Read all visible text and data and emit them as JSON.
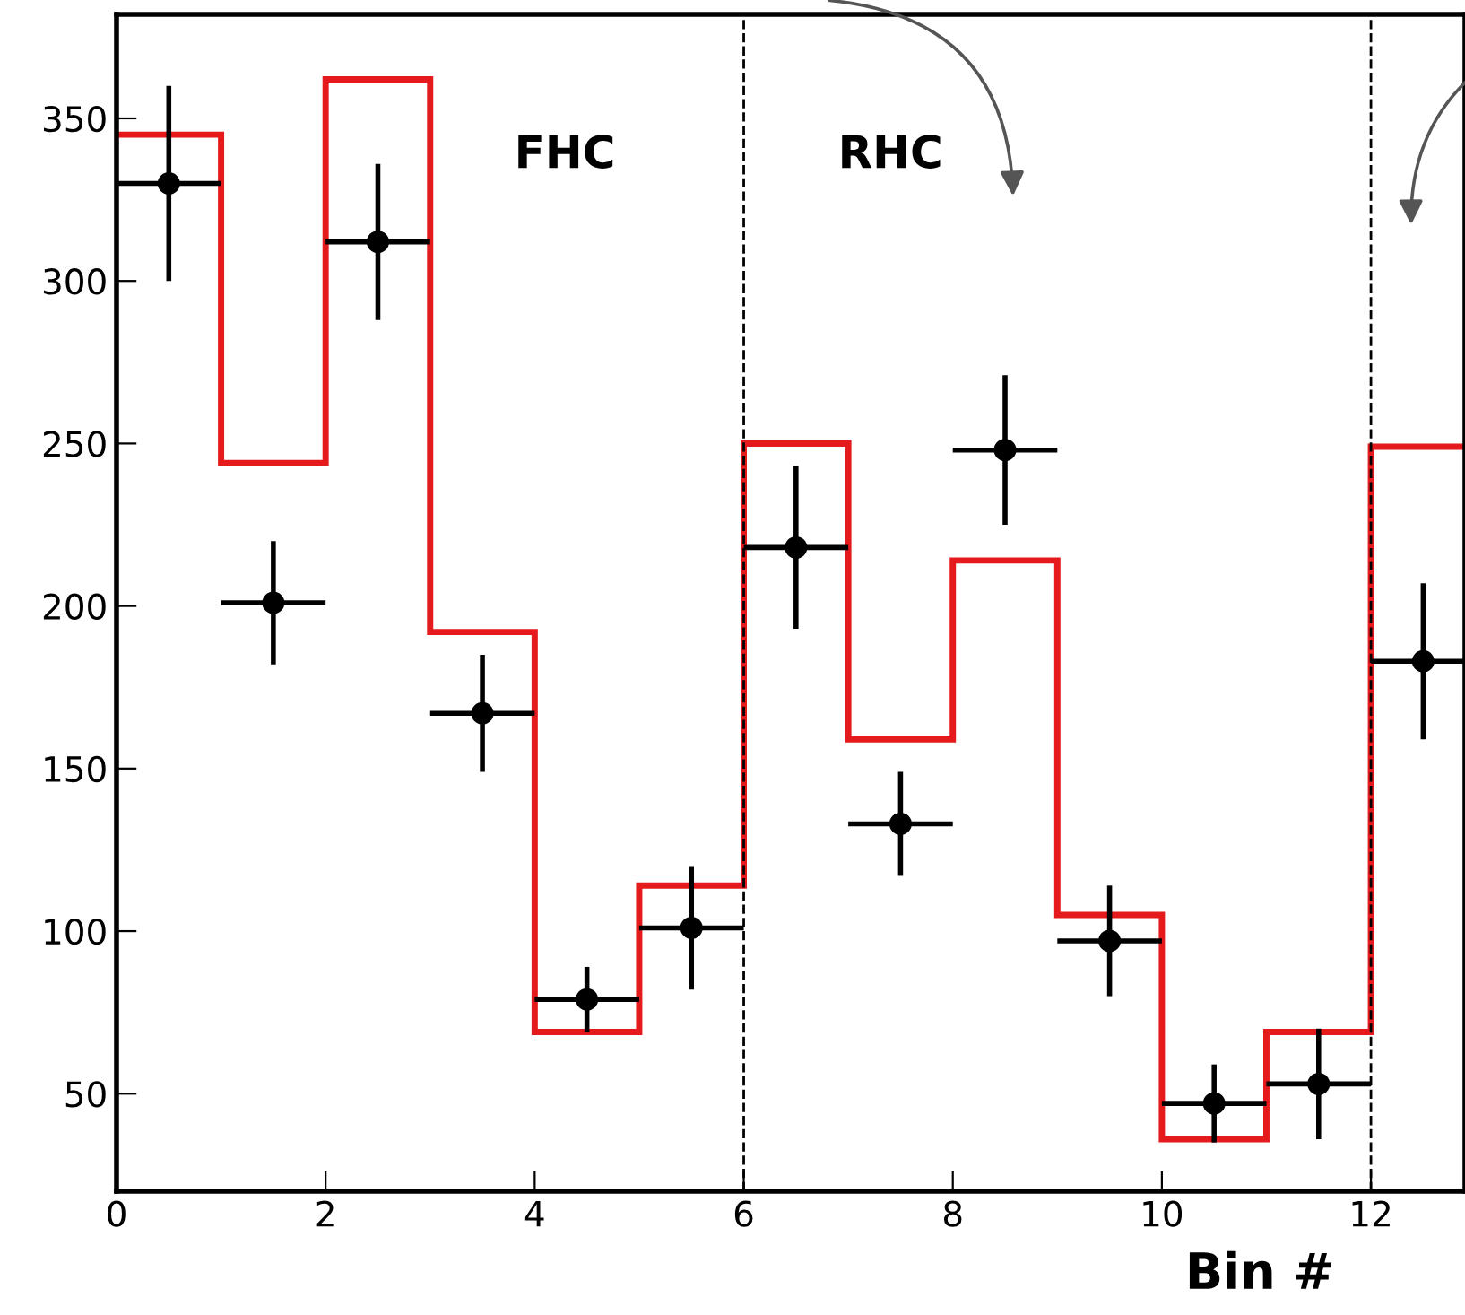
{
  "chart_data": {
    "type": "histogram",
    "xlabel": "Bin #",
    "xlim": [
      0,
      12.9
    ],
    "ylim": [
      20,
      382
    ],
    "xticks": [
      0,
      2,
      4,
      6,
      8,
      10,
      12
    ],
    "yticks": [
      50,
      100,
      150,
      200,
      250,
      300,
      350
    ],
    "annotations": [
      "FHC",
      "RHC"
    ],
    "ref_lines": [
      {
        "axis": "x",
        "value": 6,
        "label": null,
        "color": "#000000",
        "line_style": "dashed"
      },
      {
        "axis": "x",
        "value": 12,
        "label": null,
        "color": "#000000",
        "line_style": "dashed"
      }
    ],
    "series": [
      {
        "color": "#e41a1c",
        "bins": [
          0,
          1,
          2,
          3,
          4,
          5,
          6,
          7,
          8,
          9,
          10,
          11,
          12,
          12.9
        ],
        "values": [
          345,
          244,
          362,
          192,
          69,
          114,
          250,
          159,
          214,
          105,
          36,
          69,
          249
        ]
      },
      {
        "type": "scatter",
        "color": "#000000",
        "marker": "circle",
        "x": [
          0.5,
          1.5,
          2.5,
          3.5,
          4.5,
          5.5,
          6.5,
          7.5,
          8.5,
          9.5,
          10.5,
          11.5,
          12.5
        ],
        "values": [
          330,
          201,
          312,
          167,
          79,
          101,
          218,
          133,
          248,
          97,
          47,
          53,
          183
        ],
        "errors": [
          30,
          19,
          24,
          18,
          10,
          19,
          25,
          16,
          23,
          17,
          12,
          17,
          24
        ],
        "xerrors": [
          0.5,
          0.5,
          0.5,
          0.5,
          0.5,
          0.5,
          0.5,
          0.5,
          0.5,
          0.5,
          0.5,
          0.5,
          [
            12,
            12.9
          ]
        ]
      }
    ],
    "grid": false
  }
}
